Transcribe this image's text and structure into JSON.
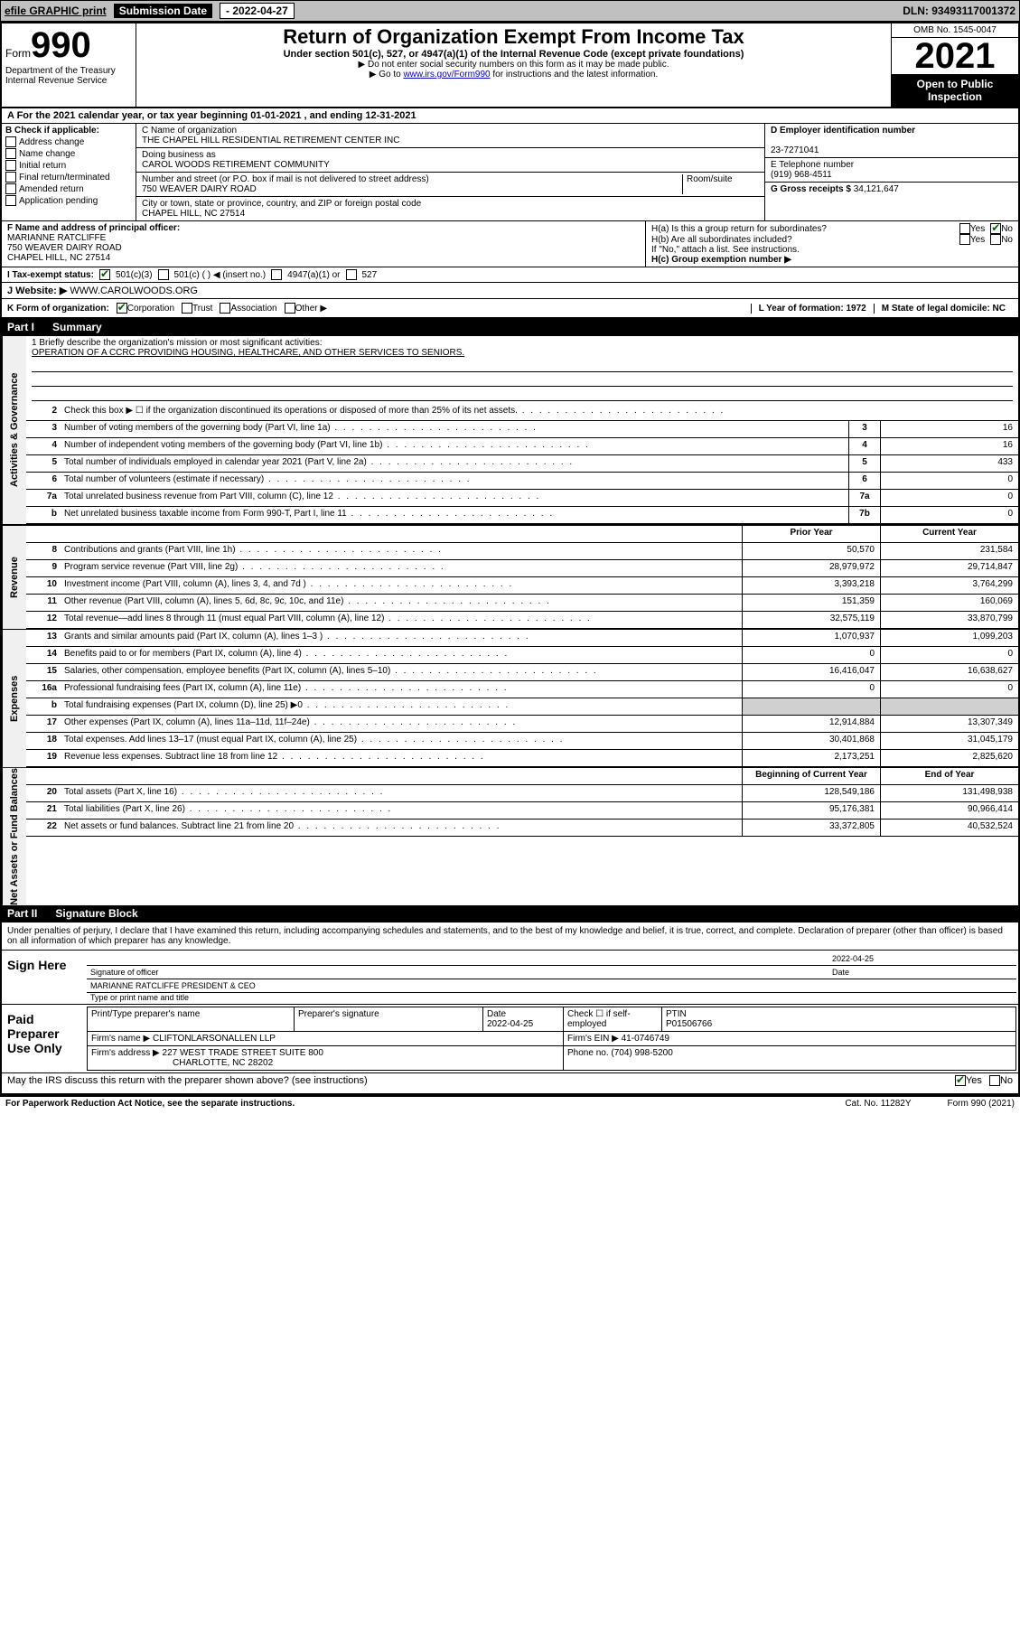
{
  "topbar": {
    "efile": "efile GRAPHIC print",
    "sub_label": "Submission Date ",
    "sub_date": "- 2022-04-27",
    "dln": "DLN: 93493117001372"
  },
  "header": {
    "form_word": "Form",
    "form_num": "990",
    "dept": "Department of the Treasury\nInternal Revenue Service",
    "title": "Return of Organization Exempt From Income Tax",
    "sub": "Under section 501(c), 527, or 4947(a)(1) of the Internal Revenue Code (except private foundations)",
    "note1": "▶ Do not enter social security numbers on this form as it may be made public.",
    "note2_pre": "▶ Go to ",
    "note2_link": "www.irs.gov/Form990",
    "note2_post": " for instructions and the latest information.",
    "omb": "OMB No. 1545-0047",
    "year": "2021",
    "open": "Open to Public Inspection"
  },
  "rowA": "A For the 2021 calendar year, or tax year beginning 01-01-2021   , and ending 12-31-2021",
  "colB": {
    "label": "B Check if applicable:",
    "items": [
      "Address change",
      "Name change",
      "Initial return",
      "Final return/terminated",
      "Amended return",
      "Application pending"
    ]
  },
  "colC": {
    "name_label": "C Name of organization",
    "name": "THE CHAPEL HILL RESIDENTIAL RETIREMENT CENTER INC",
    "dba_label": "Doing business as",
    "dba": "CAROL WOODS RETIREMENT COMMUNITY",
    "addr_label": "Number and street (or P.O. box if mail is not delivered to street address)",
    "addr": "750 WEAVER DAIRY ROAD",
    "room_label": "Room/suite",
    "city_label": "City or town, state or province, country, and ZIP or foreign postal code",
    "city": "CHAPEL HILL, NC  27514"
  },
  "colD": {
    "ein_label": "D Employer identification number",
    "ein": "23-7271041",
    "phone_label": "E Telephone number",
    "phone": "(919) 968-4511",
    "gross_label": "G Gross receipts $",
    "gross": "34,121,647"
  },
  "rowF": {
    "label": "F Name and address of principal officer:",
    "name": "MARIANNE RATCLIFFE",
    "addr1": "750 WEAVER DAIRY ROAD",
    "addr2": "CHAPEL HILL, NC  27514"
  },
  "rowH": {
    "ha": "H(a)  Is this a group return for subordinates?",
    "ha_yes": "Yes",
    "ha_no": "No",
    "hb": "H(b)  Are all subordinates included?",
    "hb_note": "If \"No,\" attach a list. See instructions.",
    "hc": "H(c)  Group exemption number ▶"
  },
  "rowI": {
    "label": "I  Tax-exempt status:",
    "o1": "501(c)(3)",
    "o2": "501(c) (  ) ◀ (insert no.)",
    "o3": "4947(a)(1) or",
    "o4": "527"
  },
  "rowJ": {
    "label": "J  Website: ▶",
    "val": "WWW.CAROLWOODS.ORG"
  },
  "rowK": {
    "label": "K Form of organization:",
    "o1": "Corporation",
    "o2": "Trust",
    "o3": "Association",
    "o4": "Other ▶",
    "l": "L Year of formation: 1972",
    "m": "M State of legal domicile: NC"
  },
  "parts": {
    "p1": "Part I",
    "p1t": "Summary",
    "p2": "Part II",
    "p2t": "Signature Block"
  },
  "vtabs": {
    "gov": "Activities & Governance",
    "rev": "Revenue",
    "exp": "Expenses",
    "net": "Net Assets or Fund Balances"
  },
  "mission": {
    "q": "1   Briefly describe the organization's mission or most significant activities:",
    "a": "OPERATION OF A CCRC PROVIDING HOUSING, HEALTHCARE, AND OTHER SERVICES TO SENIORS."
  },
  "gov_lines": [
    {
      "n": "2",
      "d": "Check this box ▶ ☐  if the organization discontinued its operations or disposed of more than 25% of its net assets.",
      "box": "",
      "v": ""
    },
    {
      "n": "3",
      "d": "Number of voting members of the governing body (Part VI, line 1a)",
      "box": "3",
      "v": "16"
    },
    {
      "n": "4",
      "d": "Number of independent voting members of the governing body (Part VI, line 1b)",
      "box": "4",
      "v": "16"
    },
    {
      "n": "5",
      "d": "Total number of individuals employed in calendar year 2021 (Part V, line 2a)",
      "box": "5",
      "v": "433"
    },
    {
      "n": "6",
      "d": "Total number of volunteers (estimate if necessary)",
      "box": "6",
      "v": "0"
    },
    {
      "n": "7a",
      "d": "Total unrelated business revenue from Part VIII, column (C), line 12",
      "box": "7a",
      "v": "0"
    },
    {
      "n": "b",
      "d": "Net unrelated business taxable income from Form 990-T, Part I, line 11",
      "box": "7b",
      "v": "0"
    }
  ],
  "col_headers": {
    "py": "Prior Year",
    "cy": "Current Year"
  },
  "rev_lines": [
    {
      "n": "8",
      "d": "Contributions and grants (Part VIII, line 1h)",
      "py": "50,570",
      "cy": "231,584"
    },
    {
      "n": "9",
      "d": "Program service revenue (Part VIII, line 2g)",
      "py": "28,979,972",
      "cy": "29,714,847"
    },
    {
      "n": "10",
      "d": "Investment income (Part VIII, column (A), lines 3, 4, and 7d )",
      "py": "3,393,218",
      "cy": "3,764,299"
    },
    {
      "n": "11",
      "d": "Other revenue (Part VIII, column (A), lines 5, 6d, 8c, 9c, 10c, and 11e)",
      "py": "151,359",
      "cy": "160,069"
    },
    {
      "n": "12",
      "d": "Total revenue—add lines 8 through 11 (must equal Part VIII, column (A), line 12)",
      "py": "32,575,119",
      "cy": "33,870,799"
    }
  ],
  "exp_lines": [
    {
      "n": "13",
      "d": "Grants and similar amounts paid (Part IX, column (A), lines 1–3 )",
      "py": "1,070,937",
      "cy": "1,099,203"
    },
    {
      "n": "14",
      "d": "Benefits paid to or for members (Part IX, column (A), line 4)",
      "py": "0",
      "cy": "0"
    },
    {
      "n": "15",
      "d": "Salaries, other compensation, employee benefits (Part IX, column (A), lines 5–10)",
      "py": "16,416,047",
      "cy": "16,638,627"
    },
    {
      "n": "16a",
      "d": "Professional fundraising fees (Part IX, column (A), line 11e)",
      "py": "0",
      "cy": "0"
    },
    {
      "n": "b",
      "d": "Total fundraising expenses (Part IX, column (D), line 25) ▶0",
      "py": "shade",
      "cy": "shade"
    },
    {
      "n": "17",
      "d": "Other expenses (Part IX, column (A), lines 11a–11d, 11f–24e)",
      "py": "12,914,884",
      "cy": "13,307,349"
    },
    {
      "n": "18",
      "d": "Total expenses. Add lines 13–17 (must equal Part IX, column (A), line 25)",
      "py": "30,401,868",
      "cy": "31,045,179"
    },
    {
      "n": "19",
      "d": "Revenue less expenses. Subtract line 18 from line 12",
      "py": "2,173,251",
      "cy": "2,825,620"
    }
  ],
  "net_headers": {
    "py": "Beginning of Current Year",
    "cy": "End of Year"
  },
  "net_lines": [
    {
      "n": "20",
      "d": "Total assets (Part X, line 16)",
      "py": "128,549,186",
      "cy": "131,498,938"
    },
    {
      "n": "21",
      "d": "Total liabilities (Part X, line 26)",
      "py": "95,176,381",
      "cy": "90,966,414"
    },
    {
      "n": "22",
      "d": "Net assets or fund balances. Subtract line 21 from line 20",
      "py": "33,372,805",
      "cy": "40,532,524"
    }
  ],
  "sig": {
    "intro": "Under penalties of perjury, I declare that I have examined this return, including accompanying schedules and statements, and to the best of my knowledge and belief, it is true, correct, and complete. Declaration of preparer (other than officer) is based on all information of which preparer has any knowledge.",
    "sign_here": "Sign Here",
    "sig_officer": "Signature of officer",
    "date": "Date",
    "date_val": "2022-04-25",
    "name": "MARIANNE RATCLIFFE  PRESIDENT & CEO",
    "name_label": "Type or print name and title"
  },
  "prep": {
    "title": "Paid Preparer Use Only",
    "h1": "Print/Type preparer's name",
    "h2": "Preparer's signature",
    "h3": "Date",
    "h3v": "2022-04-25",
    "h4": "Check ☐ if self-employed",
    "h5": "PTIN",
    "h5v": "P01506766",
    "firm_label": "Firm's name    ▶",
    "firm": "CLIFTONLARSONALLEN LLP",
    "ein_label": "Firm's EIN ▶",
    "ein": "41-0746749",
    "addr_label": "Firm's address ▶",
    "addr1": "227 WEST TRADE STREET SUITE 800",
    "addr2": "CHARLOTTE, NC  28202",
    "phone_label": "Phone no.",
    "phone": "(704) 998-5200"
  },
  "discuss": {
    "q": "May the IRS discuss this return with the preparer shown above? (see instructions)",
    "yes": "Yes",
    "no": "No"
  },
  "footer": {
    "pra": "For Paperwork Reduction Act Notice, see the separate instructions.",
    "cat": "Cat. No. 11282Y",
    "form": "Form 990 (2021)"
  }
}
